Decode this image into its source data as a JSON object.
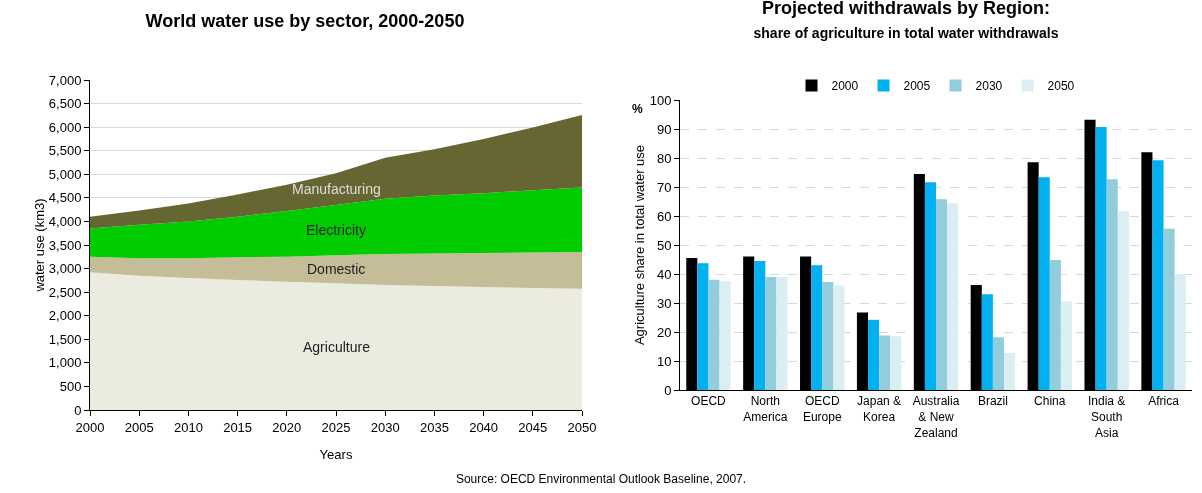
{
  "chart_data": [
    {
      "type": "area",
      "title": "World water use by sector, 2000-2050",
      "xlabel": "Years",
      "ylabel": "water use (km3)",
      "stacked": true,
      "legend": false,
      "grid": "y",
      "x": [
        2000,
        2005,
        2010,
        2015,
        2020,
        2025,
        2030,
        2035,
        2040,
        2045,
        2050
      ],
      "series": [
        {
          "name": "Agriculture",
          "color": "#ecebe0",
          "values": [
            2920,
            2850,
            2800,
            2760,
            2720,
            2690,
            2650,
            2630,
            2610,
            2590,
            2570
          ]
        },
        {
          "name": "Domestic",
          "color": "#c4bd97",
          "values": [
            330,
            370,
            420,
            480,
            530,
            590,
            660,
            690,
            720,
            750,
            780
          ]
        },
        {
          "name": "Electricity",
          "color": "#00cc00",
          "values": [
            600,
            710,
            780,
            860,
            970,
            1070,
            1170,
            1230,
            1270,
            1320,
            1370
          ]
        },
        {
          "name": "Manufacturing",
          "color": "#666633",
          "values": [
            250,
            300,
            380,
            470,
            560,
            670,
            870,
            980,
            1150,
            1330,
            1540
          ]
        }
      ],
      "xlim": [
        2000,
        2050
      ],
      "xticks": [
        2000,
        2005,
        2010,
        2015,
        2020,
        2025,
        2030,
        2035,
        2040,
        2045,
        2050
      ],
      "ylim": [
        0,
        7000
      ],
      "yticks": [
        0,
        500,
        {
          "value": 1000,
          "label": "1,000"
        },
        {
          "value": 1500,
          "label": "1,500"
        },
        {
          "value": 2000,
          "label": "2,000"
        },
        {
          "value": 2500,
          "label": "2,500"
        },
        {
          "value": 3000,
          "label": "3,000"
        },
        {
          "value": 3500,
          "label": "3,500"
        },
        {
          "value": 4000,
          "label": "4,000"
        },
        {
          "value": 4500,
          "label": "4,500"
        },
        {
          "value": 5000,
          "label": "5,000"
        },
        {
          "value": 5500,
          "label": "5,500"
        },
        {
          "value": 6000,
          "label": "6,000"
        },
        {
          "value": 6500,
          "label": "6,500"
        },
        {
          "value": 7000,
          "label": "7,000"
        }
      ],
      "annotations": [
        "Source: OECD Environmental Outlook Baseline, 2007."
      ]
    },
    {
      "type": "bar",
      "title": "Projected withdrawals by Region:",
      "subtitle": "share of agriculture in total water withdrawals",
      "ylabel": "Agriculture share in total water use",
      "legend": "top",
      "grid": "y",
      "categories": [
        "OECD",
        "North\nAmerica",
        "OECD\nEurope",
        "Japan &\nKorea",
        "Australia\n& New\nZealand",
        "Brazil",
        "China",
        "India &\nSouth\nAsia",
        "Africa"
      ],
      "series": [
        {
          "name": "2000",
          "color": "#000000",
          "values": [
            45.5,
            46,
            46,
            26.7,
            74.5,
            36.2,
            78.5,
            93.2,
            82
          ]
        },
        {
          "name": "2005",
          "color": "#00b0f0",
          "values": [
            43.7,
            44.5,
            43,
            24.2,
            71.6,
            33,
            73.4,
            90.7,
            79.2
          ]
        },
        {
          "name": "2030",
          "color": "#92cddc",
          "values": [
            38,
            39,
            37.2,
            18.8,
            65.8,
            18.2,
            44.8,
            72.7,
            55.6
          ]
        },
        {
          "name": "2050",
          "color": "#daeef3",
          "values": [
            37.5,
            39,
            36,
            18.5,
            64.4,
            12.8,
            30.5,
            61.7,
            40
          ]
        }
      ],
      "ylim": [
        0,
        100
      ],
      "yticks": [
        0,
        10,
        20,
        30,
        40,
        50,
        60,
        70,
        80,
        90,
        100
      ],
      "annotations": [
        "%"
      ]
    }
  ]
}
